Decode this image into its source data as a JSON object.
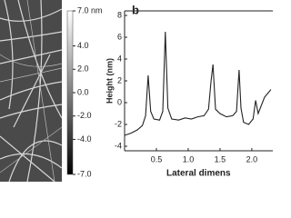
{
  "chart_data": {
    "type": "line",
    "panel_label": "b",
    "x_label": "Lateral dimens",
    "y_label": "Height (nm)",
    "xlim": [
      0,
      2.33
    ],
    "xticks": [
      0.5,
      {
        "value": 1,
        "label": "1.0"
      },
      1.5,
      {
        "value": 2,
        "label": "2.0"
      }
    ],
    "ylim": [
      -4,
      8
    ],
    "yticks": [
      -4,
      -2,
      0,
      2,
      4,
      6,
      8
    ],
    "series": [
      {
        "color": "#222222",
        "x": [
          0,
          0.1,
          0.2,
          0.28,
          0.33,
          0.37,
          0.41,
          0.46,
          0.55,
          0.6,
          0.64,
          0.68,
          0.74,
          0.85,
          0.95,
          1.05,
          1.15,
          1.25,
          1.32,
          1.36,
          1.39,
          1.43,
          1.5,
          1.6,
          1.7,
          1.76,
          1.8,
          1.83,
          1.87,
          1.95,
          2.02,
          2.06,
          2.1,
          2.2,
          2.3
        ],
        "values": [
          -3,
          -2.8,
          -2.5,
          -2.1,
          -1.2,
          2.5,
          -0.8,
          -1.5,
          -1.6,
          -0.8,
          6.5,
          -0.5,
          -1.5,
          -1.6,
          -1.4,
          -1.5,
          -1.3,
          -1.2,
          -0.6,
          2.0,
          3.5,
          -0.6,
          -1.0,
          -1.3,
          -1.2,
          -0.8,
          3.0,
          -0.5,
          -1.8,
          -2.0,
          -1.5,
          0.2,
          -1.0,
          0.5,
          1.2
        ]
      }
    ],
    "colorbar": {
      "lim": [
        -7,
        7
      ],
      "ticks": [
        {
          "value": 7,
          "label": "7.0 nm"
        },
        {
          "value": 4,
          "label": "4.0"
        },
        {
          "value": 2,
          "label": "2.0"
        },
        {
          "value": 0,
          "label": "0.0"
        },
        {
          "value": -2,
          "label": "-2.0"
        },
        {
          "value": -4,
          "label": "-4.0"
        },
        {
          "value": -7,
          "label": "-7.0"
        }
      ]
    }
  }
}
